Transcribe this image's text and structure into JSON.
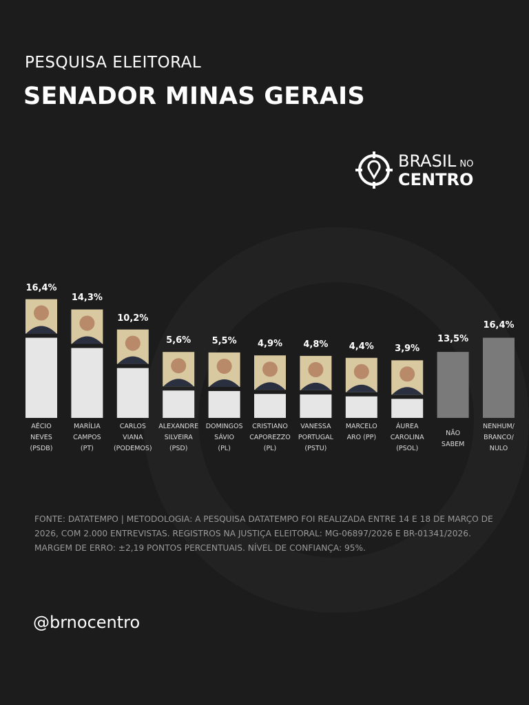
{
  "header": {
    "subtitle": "PESQUISA ELEITORAL",
    "title": "SENADOR MINAS GERAIS"
  },
  "logo": {
    "line1": "BRASIL",
    "line1_small": "NO",
    "line2": "CENTRO",
    "icon": "crosshair-map-pin-icon"
  },
  "chart_data": {
    "type": "bar",
    "title": "SENADOR MINAS GERAIS",
    "categories": [
      "AÉCIO NEVES (PSDB)",
      "MARÍLIA CAMPOS (PT)",
      "CARLOS VIANA (PODEMOS)",
      "ALEXANDRE SILVEIRA (PSD)",
      "DOMINGOS SÁVIO (PL)",
      "CRISTIANO CAPOREZZO (PL)",
      "VANESSA PORTUGAL (PSTU)",
      "MARCELO ARO (PP)",
      "ÁUREA CAROLINA (PSOL)",
      "NÃO SABEM",
      "NENHUM/ BRANCO/ NULO"
    ],
    "label_lines": [
      [
        "AÉCIO",
        "NEVES",
        "(PSDB)"
      ],
      [
        "MARÍLIA",
        "CAMPOS",
        "(PT)"
      ],
      [
        "CARLOS",
        "VIANA",
        "(PODEMOS)"
      ],
      [
        "ALEXANDRE",
        "SILVEIRA",
        "(PSD)"
      ],
      [
        "DOMINGOS",
        "SÁVIO",
        "(PL)"
      ],
      [
        "CRISTIANO",
        "CAPOREZZO",
        "(PL)"
      ],
      [
        "VANESSA",
        "PORTUGAL",
        "(PSTU)"
      ],
      [
        "MARCELO",
        "ARO (PP)"
      ],
      [
        "ÁUREA",
        "CAROLINA",
        "(PSOL)"
      ],
      [
        "NÃO",
        "SABEM"
      ],
      [
        "NENHUM/",
        "BRANCO/",
        "NULO"
      ]
    ],
    "values": [
      16.4,
      14.3,
      10.2,
      5.6,
      5.5,
      4.9,
      4.8,
      4.4,
      3.9,
      13.5,
      16.4
    ],
    "value_labels": [
      "16,4%",
      "14,3%",
      "10,2%",
      "5,6%",
      "5,5%",
      "4,9%",
      "4,8%",
      "4,4%",
      "3,9%",
      "13,5%",
      "16,4%"
    ],
    "has_photo": [
      true,
      true,
      true,
      true,
      true,
      true,
      true,
      true,
      true,
      false,
      false
    ],
    "colors": {
      "candidate": "#e6e6e6",
      "other": "#7a7a7a"
    },
    "xlabel": "",
    "ylabel": ""
  },
  "footnote": "FONTE: DATATEMPO | METODOLOGIA: A PESQUISA DATATEMPO FOI REALIZADA ENTRE 14 E 18 DE MARÇO DE 2026, COM 2.000 ENTREVISTAS. REGISTROS NA JUSTIÇA ELEITORAL: MG-06897/2026 E BR-01341/2026. MARGEM DE ERRO: ±2,19 PONTOS PERCENTUAIS. NÍVEL DE CONFIANÇA: 95%.",
  "handle": "@brnocentro"
}
